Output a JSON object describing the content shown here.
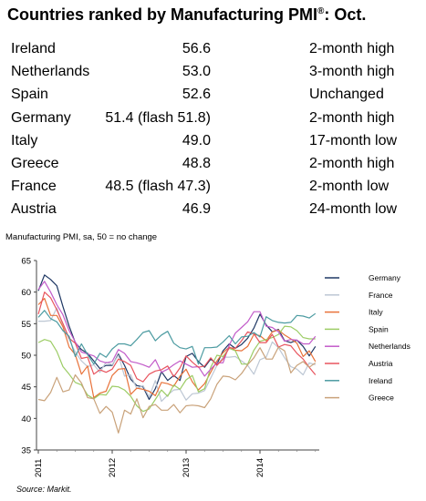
{
  "header": {
    "title": "Countries ranked by Manufacturing PMI",
    "title_mark": "®",
    "title_suffix": ": Oct."
  },
  "ranking": [
    {
      "country": "Ireland",
      "value": "56.6",
      "status": "2-month high"
    },
    {
      "country": "Netherlands",
      "value": "53.0",
      "status": "3-month high"
    },
    {
      "country": "Spain",
      "value": "52.6",
      "status": "Unchanged"
    },
    {
      "country": "Germany",
      "value": "51.4 (flash 51.8)",
      "status": "2-month high"
    },
    {
      "country": "Italy",
      "value": "49.0",
      "status": "17-month low"
    },
    {
      "country": "Greece",
      "value": "48.8",
      "status": "2-month high"
    },
    {
      "country": "France",
      "value": "48.5 (flash 47.3)",
      "status": "2-month low"
    },
    {
      "country": "Austria",
      "value": "46.9",
      "status": "24-month low"
    }
  ],
  "chart_data": {
    "type": "line",
    "title": "Manufacturing PMI, sa, 50 = no change",
    "xlabel": "",
    "ylabel": "",
    "ylim": [
      35,
      65
    ],
    "yticks": [
      35,
      40,
      45,
      50,
      55,
      60,
      65
    ],
    "xticks": [
      "2011",
      "2012",
      "2013",
      "2014"
    ],
    "x_start": "2011-01",
    "x_end": "2014-10",
    "grid": false,
    "legend_position": "right",
    "series": [
      {
        "name": "Germany",
        "color": "#1f3864",
        "values": [
          60.2,
          62.7,
          62.0,
          61.0,
          57.7,
          54.6,
          52.0,
          50.9,
          50.3,
          49.1,
          47.9,
          48.4,
          48.4,
          50.2,
          48.4,
          46.2,
          45.2,
          45.0,
          43.0,
          44.7,
          47.4,
          46.0,
          46.8,
          46.0,
          49.8,
          50.3,
          49.0,
          48.1,
          49.4,
          48.6,
          50.7,
          51.8,
          51.1,
          51.7,
          52.7,
          54.3,
          56.5,
          54.8,
          53.7,
          54.1,
          52.3,
          52.0,
          52.4,
          51.4,
          49.9,
          51.4
        ]
      },
      {
        "name": "France",
        "color": "#bdc7d4",
        "values": [
          55.4,
          55.4,
          55.5,
          57.5,
          54.7,
          52.5,
          50.5,
          49.1,
          48.2,
          48.5,
          47.3,
          48.9,
          48.5,
          50.0,
          46.7,
          46.9,
          44.7,
          45.2,
          43.4,
          46.0,
          42.7,
          43.7,
          44.5,
          44.6,
          42.9,
          43.9,
          44.0,
          44.4,
          46.4,
          48.4,
          49.7,
          49.7,
          49.8,
          49.1,
          48.4,
          47.0,
          49.3,
          49.7,
          52.1,
          51.2,
          49.6,
          48.2,
          47.8,
          46.9,
          48.8,
          48.5
        ]
      },
      {
        "name": "Italy",
        "color": "#e8723a",
        "values": [
          58.0,
          59.0,
          56.3,
          56.3,
          54.5,
          51.3,
          50.1,
          47.0,
          48.3,
          43.3,
          44.0,
          44.3,
          46.8,
          47.8,
          47.9,
          43.8,
          44.8,
          44.6,
          44.3,
          43.6,
          45.7,
          45.5,
          45.1,
          46.7,
          47.8,
          45.8,
          44.5,
          45.5,
          47.3,
          49.1,
          50.4,
          51.3,
          50.8,
          50.7,
          51.4,
          53.3,
          53.1,
          52.3,
          53.7,
          54.0,
          53.2,
          52.6,
          51.9,
          49.8,
          50.7,
          49.0
        ]
      },
      {
        "name": "Spain",
        "color": "#9ccc65",
        "values": [
          52.0,
          52.5,
          52.2,
          50.6,
          48.2,
          47.0,
          45.7,
          45.3,
          43.7,
          43.1,
          43.8,
          43.7,
          45.1,
          45.0,
          44.5,
          43.5,
          42.0,
          41.1,
          41.5,
          43.0,
          44.5,
          43.5,
          45.3,
          44.6,
          46.1,
          46.8,
          44.2,
          44.7,
          48.1,
          50.0,
          49.8,
          51.1,
          50.7,
          48.6,
          48.6,
          50.8,
          52.2,
          52.5,
          52.8,
          53.3,
          54.6,
          54.5,
          53.9,
          52.8,
          52.6,
          52.6
        ]
      },
      {
        "name": "Netherlands",
        "color": "#c25bc9",
        "values": [
          60.4,
          61.7,
          60.0,
          58.0,
          56.4,
          53.9,
          52.1,
          50.5,
          50.2,
          49.9,
          49.1,
          48.8,
          49.0,
          50.9,
          50.3,
          49.0,
          48.8,
          48.5,
          48.1,
          49.3,
          47.3,
          47.8,
          48.5,
          49.1,
          48.6,
          48.1,
          48.2,
          46.7,
          47.8,
          48.8,
          48.8,
          51.6,
          53.5,
          54.4,
          55.3,
          56.9,
          56.9,
          54.6,
          54.4,
          53.7,
          52.2,
          52.5,
          52.4,
          51.8,
          51.8,
          53.0
        ]
      },
      {
        "name": "Austria",
        "color": "#e8545e",
        "values": [
          56.5,
          60.0,
          59.1,
          57.2,
          55.0,
          52.7,
          51.9,
          49.5,
          49.7,
          47.0,
          47.7,
          47.3,
          47.8,
          49.4,
          49.0,
          48.4,
          46.3,
          45.8,
          47.0,
          47.5,
          47.7,
          48.3,
          46.6,
          48.0,
          49.9,
          48.9,
          48.1,
          48.3,
          49.6,
          48.4,
          49.4,
          51.2,
          51.1,
          52.3,
          53.7,
          53.4,
          52.0,
          52.0,
          53.3,
          51.3,
          51.7,
          51.5,
          50.3,
          49.4,
          48.1,
          46.9
        ]
      },
      {
        "name": "Ireland",
        "color": "#4c9ba1",
        "values": [
          56.0,
          57.1,
          55.8,
          55.3,
          53.9,
          53.0,
          49.8,
          51.8,
          50.1,
          48.6,
          50.3,
          49.7,
          51.0,
          51.8,
          51.8,
          51.5,
          52.5,
          53.6,
          53.9,
          52.3,
          53.2,
          53.8,
          51.9,
          51.2,
          51.0,
          51.4,
          48.6,
          51.2,
          51.2,
          51.3,
          52.1,
          53.1,
          51.8,
          52.9,
          53.0,
          53.6,
          52.9,
          56.1,
          55.5,
          55.2,
          55.1,
          55.2,
          56.3,
          56.2,
          55.9,
          56.6
        ]
      },
      {
        "name": "Greece",
        "color": "#c9a27a",
        "values": [
          43.0,
          42.8,
          44.1,
          46.5,
          44.2,
          44.5,
          46.9,
          45.6,
          43.3,
          43.1,
          40.8,
          41.9,
          41.0,
          37.7,
          41.3,
          40.7,
          43.1,
          40.1,
          41.9,
          42.2,
          41.3,
          41.3,
          42.2,
          40.9,
          42.0,
          42.1,
          42.0,
          41.7,
          43.1,
          45.4,
          46.7,
          46.6,
          46.1,
          47.1,
          48.5,
          49.6,
          51.2,
          49.4,
          49.4,
          51.3,
          50.7,
          47.2,
          48.4,
          49.0,
          48.1,
          48.8
        ]
      }
    ]
  },
  "source": "Source: Markit."
}
